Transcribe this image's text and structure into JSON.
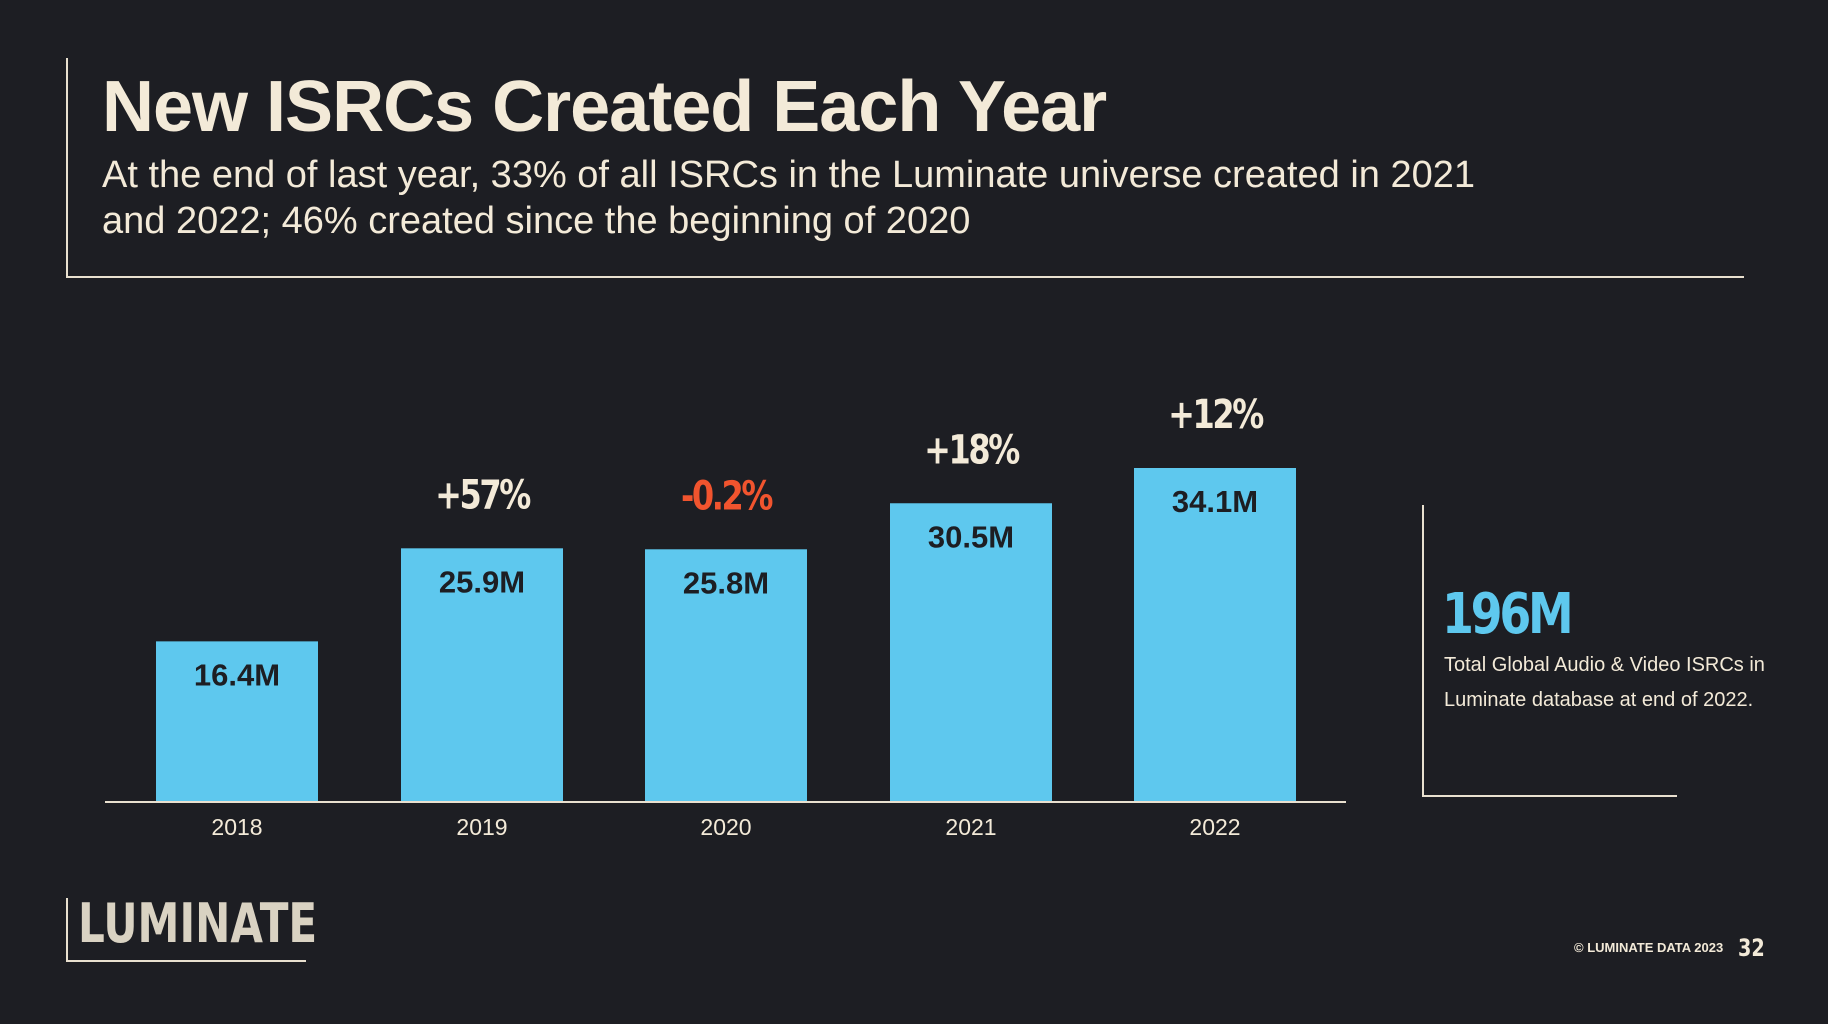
{
  "header": {
    "title": "New ISRCs Created Each Year",
    "subtitle": "At the end of last year, 33% of all ISRCs in the Luminate universe created in 2021 and 2022; 46% created since the beginning of 2020"
  },
  "chart_data": {
    "type": "bar",
    "categories": [
      "2018",
      "2019",
      "2020",
      "2021",
      "2022"
    ],
    "values": [
      16.4,
      25.9,
      25.8,
      30.5,
      34.1
    ],
    "value_labels": [
      "16.4M",
      "25.9M",
      "25.8M",
      "30.5M",
      "34.1M"
    ],
    "growth_labels": [
      "",
      "+57%",
      "-0.2%",
      "+18%",
      "+12%"
    ],
    "unit": "M",
    "ylim": [
      0,
      34.1
    ],
    "grid": false,
    "colors": {
      "bar": "#5ec8ee",
      "growth_positive": "#f3ead8",
      "growth_negative": "#f1542e",
      "axis": "#e9e0cf"
    }
  },
  "callout": {
    "value": "196M",
    "text": "Total Global Audio & Video ISRCs in Luminate database at end of 2022."
  },
  "footer": {
    "logo": "LUMINATE",
    "copyright": "© LUMINATE DATA 2023",
    "page": "32"
  }
}
